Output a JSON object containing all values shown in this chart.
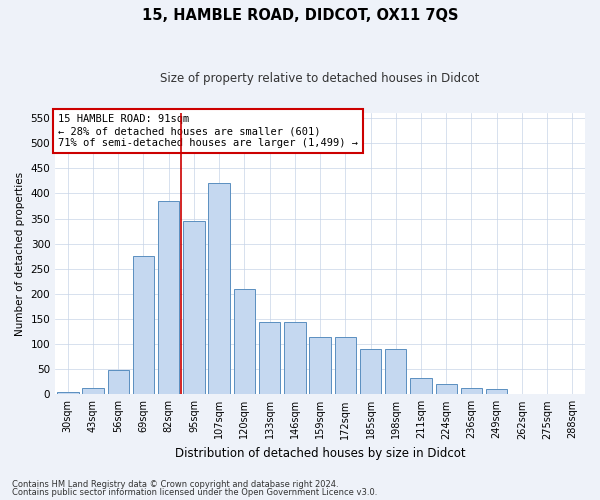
{
  "title": "15, HAMBLE ROAD, DIDCOT, OX11 7QS",
  "subtitle": "Size of property relative to detached houses in Didcot",
  "xlabel": "Distribution of detached houses by size in Didcot",
  "ylabel": "Number of detached properties",
  "categories": [
    "30sqm",
    "43sqm",
    "56sqm",
    "69sqm",
    "82sqm",
    "95sqm",
    "107sqm",
    "120sqm",
    "133sqm",
    "146sqm",
    "159sqm",
    "172sqm",
    "185sqm",
    "198sqm",
    "211sqm",
    "224sqm",
    "236sqm",
    "249sqm",
    "262sqm",
    "275sqm",
    "288sqm"
  ],
  "values": [
    5,
    13,
    48,
    275,
    385,
    345,
    420,
    210,
    143,
    143,
    115,
    115,
    90,
    90,
    32,
    20,
    13,
    10,
    1,
    1,
    0
  ],
  "bar_color": "#c5d8f0",
  "bar_edge_color": "#5a8fc0",
  "vline_x_idx": 4.5,
  "vline_color": "#cc0000",
  "annotation_text": "15 HAMBLE ROAD: 91sqm\n← 28% of detached houses are smaller (601)\n71% of semi-detached houses are larger (1,499) →",
  "annotation_box_color": "#ffffff",
  "annotation_box_edge_color": "#cc0000",
  "ylim": [
    0,
    560
  ],
  "yticks": [
    0,
    50,
    100,
    150,
    200,
    250,
    300,
    350,
    400,
    450,
    500,
    550
  ],
  "footnote1": "Contains HM Land Registry data © Crown copyright and database right 2024.",
  "footnote2": "Contains public sector information licensed under the Open Government Licence v3.0.",
  "background_color": "#eef2f9",
  "plot_background_color": "#ffffff",
  "grid_color": "#c8d4e8"
}
